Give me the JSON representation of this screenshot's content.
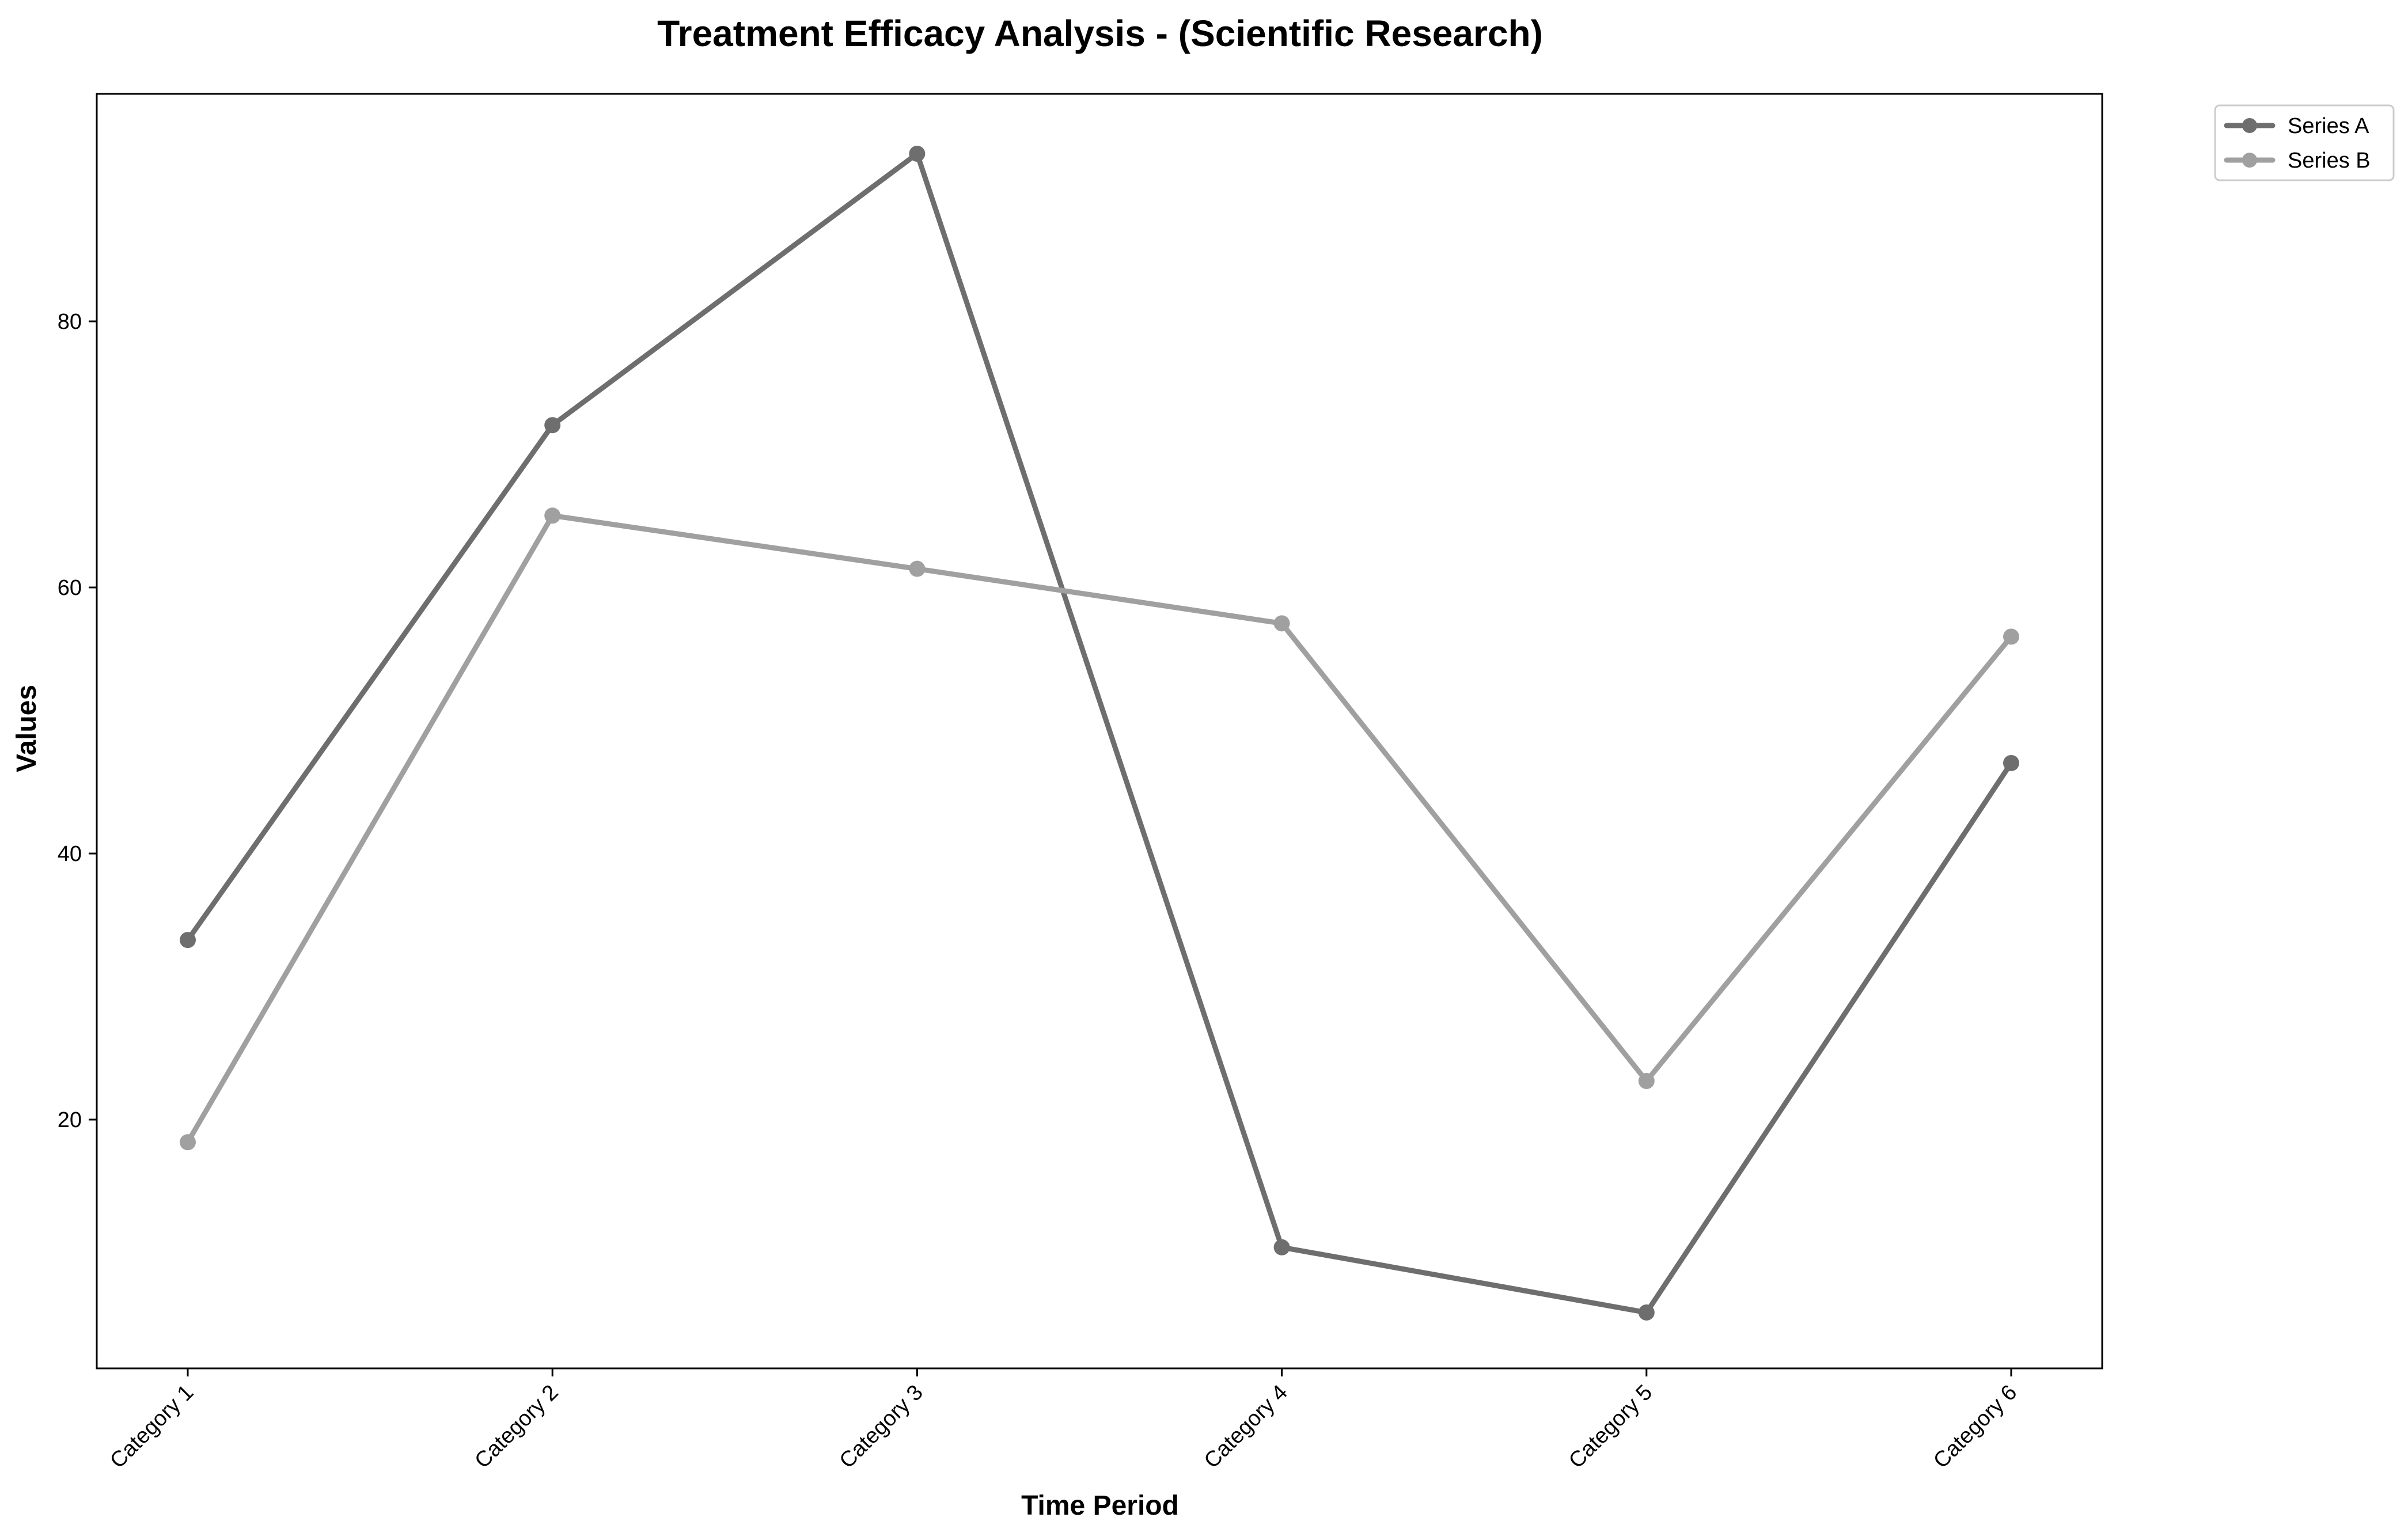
{
  "chart_data": {
    "type": "line",
    "title": "Treatment Efficacy Analysis - (Scientific Research)",
    "xlabel": "Time Period",
    "ylabel": "Values",
    "categories": [
      "Category 1",
      "Category 2",
      "Category 3",
      "Category 4",
      "Category 5",
      "Category 6"
    ],
    "series": [
      {
        "name": "Series A",
        "color": "#6e6e6e",
        "values": [
          33.5,
          72.2,
          92.6,
          10.4,
          5.5,
          46.8
        ]
      },
      {
        "name": "Series B",
        "color": "#a0a0a0",
        "values": [
          18.3,
          65.4,
          61.4,
          57.3,
          22.9,
          56.3
        ]
      }
    ],
    "ylim": [
      1.3,
      97.1
    ],
    "yticks": [
      20,
      40,
      60,
      80
    ],
    "grid": false,
    "legend": "upper-right-outside"
  }
}
